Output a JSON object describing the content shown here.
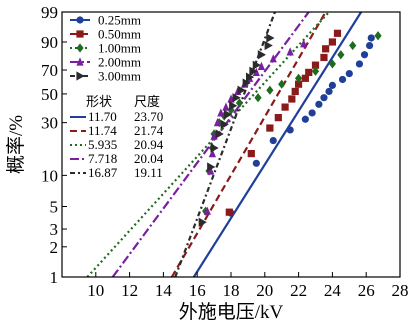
{
  "chart_data": {
    "type": "scatter",
    "title": "",
    "xlabel": "外施电压/kV",
    "ylabel": "概率/%",
    "xlim": [
      8,
      28
    ],
    "ylim": [
      1,
      99
    ],
    "yscale": "weibull-probability",
    "grid": false,
    "legend_position": "top-left",
    "x_ticks": [
      10,
      12,
      14,
      16,
      18,
      20,
      22,
      24,
      26,
      28
    ],
    "y_ticks": [
      1,
      2,
      3,
      5,
      10,
      30,
      50,
      70,
      90,
      99
    ],
    "fit_header": {
      "shape": "形状",
      "scale": "尺度"
    },
    "series": [
      {
        "name": "0.25mm",
        "color": "#1f3f99",
        "marker": "circle",
        "shape_param": "11.70",
        "scale_param": "23.70",
        "fit_line": [
          [
            15.8,
            1
          ],
          [
            25.7,
            99
          ]
        ],
        "points": [
          [
            18.0,
            4.3
          ],
          [
            19.5,
            13
          ],
          [
            20.5,
            21
          ],
          [
            21.5,
            26
          ],
          [
            22.4,
            32
          ],
          [
            22.8,
            36
          ],
          [
            23.2,
            42
          ],
          [
            23.5,
            47
          ],
          [
            23.8,
            52
          ],
          [
            24.0,
            57
          ],
          [
            24.6,
            62
          ],
          [
            25.0,
            67
          ],
          [
            25.6,
            75
          ],
          [
            25.9,
            82
          ],
          [
            26.2,
            88
          ],
          [
            26.3,
            92
          ]
        ]
      },
      {
        "name": "0.50mm",
        "color": "#8b1a1a",
        "marker": "square",
        "shape_param": "11.74",
        "scale_param": "21.74",
        "fit_line": [
          [
            14.5,
            1
          ],
          [
            23.6,
            99
          ]
        ],
        "points": [
          [
            17.9,
            4.4
          ],
          [
            19.2,
            16
          ],
          [
            20.3,
            27
          ],
          [
            20.8,
            33
          ],
          [
            21.2,
            40
          ],
          [
            21.6,
            46
          ],
          [
            21.8,
            52
          ],
          [
            22.0,
            58
          ],
          [
            22.4,
            63
          ],
          [
            22.6,
            68
          ],
          [
            23.0,
            74
          ],
          [
            23.5,
            80
          ],
          [
            23.6,
            86
          ],
          [
            24.0,
            90
          ],
          [
            24.3,
            94
          ]
        ]
      },
      {
        "name": "1.00mm",
        "color": "#1f6b1f",
        "marker": "diamond",
        "shape_param": "5.935",
        "scale_param": "20.94",
        "fit_line": [
          [
            9.5,
            1
          ],
          [
            23.8,
            99
          ]
        ],
        "points": [
          [
            16.5,
            4.5
          ],
          [
            16.7,
            11
          ],
          [
            16.9,
            18
          ],
          [
            17.0,
            24
          ],
          [
            17.3,
            30
          ],
          [
            17.6,
            34
          ],
          [
            18.0,
            38
          ],
          [
            18.5,
            43
          ],
          [
            19.6,
            47
          ],
          [
            20.3,
            53
          ],
          [
            21.0,
            58
          ],
          [
            22.0,
            63
          ],
          [
            23.0,
            69
          ],
          [
            24.0,
            75
          ],
          [
            24.5,
            82
          ],
          [
            25.2,
            88
          ],
          [
            26.7,
            93
          ]
        ]
      },
      {
        "name": "2.00mm",
        "color": "#7a1fa0",
        "marker": "triangle",
        "shape_param": "7.718",
        "scale_param": "20.04",
        "fit_line": [
          [
            11.0,
            1
          ],
          [
            22.6,
            99
          ]
        ],
        "points": [
          [
            16.6,
            4.5
          ],
          [
            16.8,
            11
          ],
          [
            16.9,
            16
          ],
          [
            17.0,
            23
          ],
          [
            17.2,
            30
          ],
          [
            17.4,
            36
          ],
          [
            17.7,
            40
          ],
          [
            18.0,
            46
          ],
          [
            18.4,
            52
          ],
          [
            18.8,
            58
          ],
          [
            19.1,
            63
          ],
          [
            19.5,
            68
          ],
          [
            19.8,
            73
          ],
          [
            20.5,
            79
          ],
          [
            21.5,
            84
          ],
          [
            22.3,
            89
          ]
        ]
      },
      {
        "name": "3.00mm",
        "color": "#2b2b2b",
        "marker": "triangle-right",
        "shape_param": "16.87",
        "scale_param": "19.11",
        "fit_line": [
          [
            14.7,
            1
          ],
          [
            20.6,
            99
          ]
        ],
        "points": [
          [
            16.3,
            3.5
          ],
          [
            16.8,
            12
          ],
          [
            17.0,
            18
          ],
          [
            17.3,
            24
          ],
          [
            17.6,
            29
          ],
          [
            17.8,
            35
          ],
          [
            18.1,
            41
          ],
          [
            18.3,
            47
          ],
          [
            18.6,
            53
          ],
          [
            18.9,
            59
          ],
          [
            19.1,
            64
          ],
          [
            19.3,
            69
          ],
          [
            19.5,
            74
          ],
          [
            19.8,
            82
          ],
          [
            20.2,
            88
          ],
          [
            20.3,
            92
          ]
        ]
      }
    ]
  }
}
